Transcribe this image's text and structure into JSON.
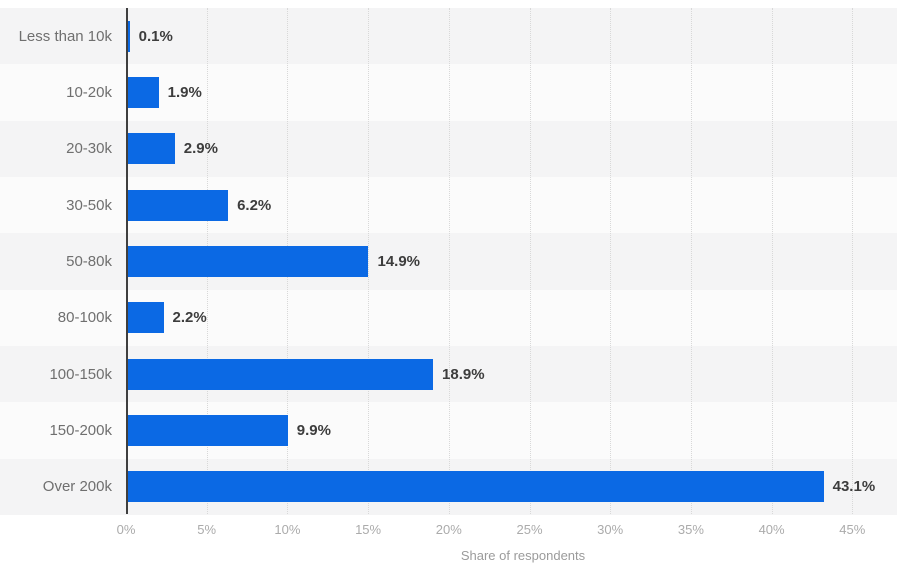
{
  "chart_data": {
    "type": "bar",
    "orientation": "horizontal",
    "title": "",
    "xlabel": "Share of respondents",
    "ylabel": "",
    "categories": [
      "Less than 10k",
      "10-20k",
      "20-30k",
      "30-50k",
      "50-80k",
      "80-100k",
      "100-150k",
      "150-200k",
      "Over 200k"
    ],
    "values": [
      0.1,
      1.9,
      2.9,
      6.2,
      14.9,
      2.2,
      18.9,
      9.9,
      43.1
    ],
    "value_labels": [
      "0.1%",
      "1.9%",
      "2.9%",
      "6.2%",
      "14.9%",
      "2.2%",
      "18.9%",
      "9.9%",
      "43.1%"
    ],
    "xlim": [
      0,
      45
    ],
    "xtick_labels": [
      "0%",
      "5%",
      "10%",
      "15%",
      "20%",
      "25%",
      "30%",
      "35%",
      "40%",
      "45%"
    ],
    "xtick_values": [
      0,
      5,
      10,
      15,
      20,
      25,
      30,
      35,
      40,
      45
    ],
    "grid": "vertical-dotted",
    "legend": "none",
    "colors": {
      "bar": "#0b69e4",
      "band_odd": "#f4f4f5",
      "band_even": "#fbfbfb",
      "gridline": "#d8d8d8",
      "axis_line": "#3f3f3f",
      "category_label": "#6f6f6f",
      "value_label": "#3d3d3d",
      "tick_label": "#ababab",
      "axis_title": "#9b9b9b"
    }
  }
}
